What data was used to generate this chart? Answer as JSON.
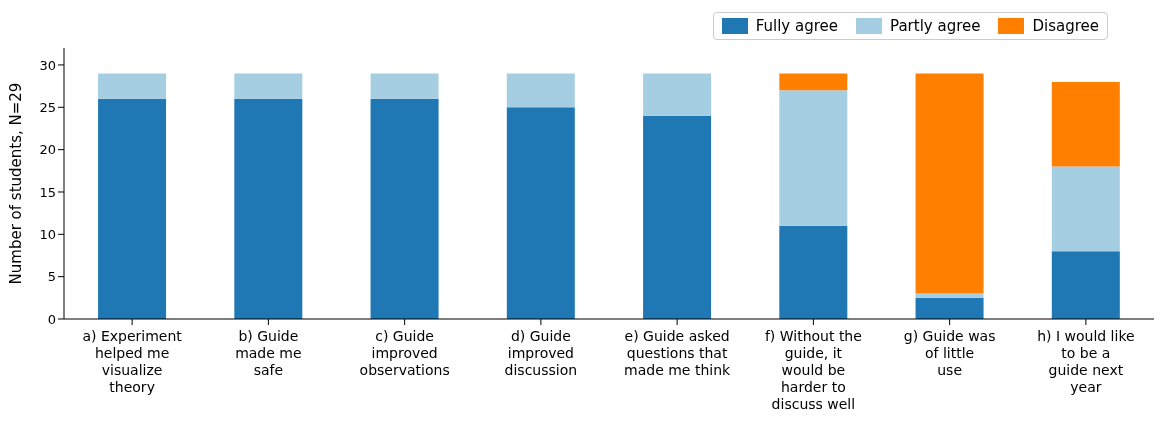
{
  "chart_data": {
    "type": "bar",
    "stacked": true,
    "ylabel": "Number of students, N=29",
    "categories": [
      "a) Experiment\nhelped me\nvisualize\ntheory",
      "b) Guide\nmade me\nsafe",
      "c) Guide\nimproved\nobservations",
      "d) Guide\nimproved\ndiscussion",
      "e) Guide asked\nquestions that\nmade me think",
      "f) Without the\nguide, it\nwould be\nharder to\ndiscuss well",
      "g) Guide was\nof little\nuse",
      "h) I would like\nto be a\nguide next\nyear"
    ],
    "series": [
      {
        "name": "Fully agree",
        "color": "#1f77b4",
        "values": [
          26,
          26,
          26,
          25,
          24,
          11,
          2.5,
          8
        ]
      },
      {
        "name": "Partly agree",
        "color": "#a6cee3",
        "values": [
          3,
          3,
          3,
          4,
          5,
          16,
          0.5,
          10
        ]
      },
      {
        "name": "Disagree",
        "color": "#ff7f00",
        "values": [
          0,
          0,
          0,
          0,
          0,
          2,
          26,
          10
        ]
      }
    ],
    "ylim": [
      0,
      32
    ],
    "yticks": [
      0,
      5,
      10,
      15,
      20,
      25,
      30
    ],
    "grid": false,
    "legend": "top right"
  }
}
